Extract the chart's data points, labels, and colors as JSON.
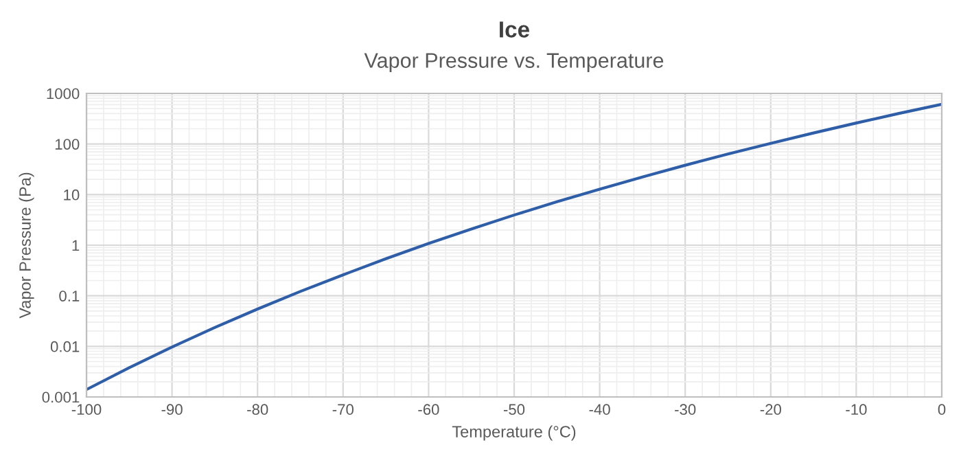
{
  "chart_data": {
    "type": "line",
    "title": "Ice",
    "subtitle": "Vapor Pressure vs. Temperature",
    "xlabel": "Temperature (°C)",
    "ylabel": "Vapor Pressure (Pa)",
    "x": [
      -100,
      -95,
      -90,
      -85,
      -80,
      -75,
      -70,
      -65,
      -60,
      -55,
      -50,
      -45,
      -40,
      -35,
      -30,
      -25,
      -20,
      -15,
      -10,
      -5,
      0
    ],
    "series": [
      {
        "color": "#2f5ea8",
        "values": [
          0.0014,
          0.0038,
          0.0097,
          0.0236,
          0.0547,
          0.122,
          0.259,
          0.54,
          1.08,
          2.09,
          3.94,
          7.2,
          12.8,
          22.3,
          38,
          63.3,
          103,
          165,
          260,
          402,
          611
        ]
      }
    ],
    "log": "y",
    "xlim": [
      -100,
      0
    ],
    "xticks": [
      -100,
      -90,
      -80,
      -70,
      -60,
      -50,
      -40,
      -30,
      -20,
      -10,
      0
    ],
    "ylim": [
      0.001,
      1000
    ],
    "yticks": [
      0.001,
      0.01,
      0.1,
      1,
      10,
      100,
      1000
    ],
    "grid": true,
    "marker": "none",
    "line_style": "solid"
  }
}
